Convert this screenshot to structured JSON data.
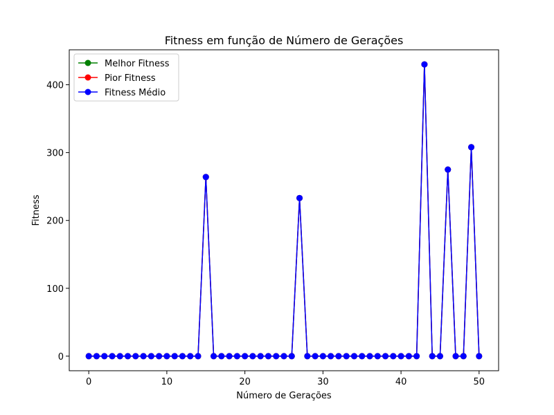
{
  "chart_data": {
    "type": "line",
    "title": "Fitness em função de Número de Gerações",
    "xlabel": "Número de Gerações",
    "ylabel": "Fitness",
    "xlim": [
      -2.5,
      52.5
    ],
    "ylim": [
      -21.5,
      451.5
    ],
    "xticks": [
      0,
      10,
      20,
      30,
      40,
      50
    ],
    "yticks": [
      0,
      100,
      200,
      300,
      400
    ],
    "grid": false,
    "legend_position": "top-left",
    "x": [
      0,
      1,
      2,
      3,
      4,
      5,
      6,
      7,
      8,
      9,
      10,
      11,
      12,
      13,
      14,
      15,
      16,
      17,
      18,
      19,
      20,
      21,
      22,
      23,
      24,
      25,
      26,
      27,
      28,
      29,
      30,
      31,
      32,
      33,
      34,
      35,
      36,
      37,
      38,
      39,
      40,
      41,
      42,
      43,
      44,
      45,
      46,
      47,
      48,
      49,
      50
    ],
    "series": [
      {
        "name": "Melhor Fitness",
        "color": "#008000",
        "values": [
          0,
          0,
          0,
          0,
          0,
          0,
          0,
          0,
          0,
          0,
          0,
          0,
          0,
          0,
          0,
          264,
          0,
          0,
          0,
          0,
          0,
          0,
          0,
          0,
          0,
          0,
          0,
          233,
          0,
          0,
          0,
          0,
          0,
          0,
          0,
          0,
          0,
          0,
          0,
          0,
          0,
          0,
          0,
          430,
          0,
          0,
          275,
          0,
          0,
          308,
          0
        ]
      },
      {
        "name": "Pior Fitness",
        "color": "#ff0000",
        "values": [
          0,
          0,
          0,
          0,
          0,
          0,
          0,
          0,
          0,
          0,
          0,
          0,
          0,
          0,
          0,
          264,
          0,
          0,
          0,
          0,
          0,
          0,
          0,
          0,
          0,
          0,
          0,
          233,
          0,
          0,
          0,
          0,
          0,
          0,
          0,
          0,
          0,
          0,
          0,
          0,
          0,
          0,
          0,
          430,
          0,
          0,
          275,
          0,
          0,
          308,
          0
        ]
      },
      {
        "name": "Fitness Médio",
        "color": "#0000ff",
        "values": [
          0,
          0,
          0,
          0,
          0,
          0,
          0,
          0,
          0,
          0,
          0,
          0,
          0,
          0,
          0,
          264,
          0,
          0,
          0,
          0,
          0,
          0,
          0,
          0,
          0,
          0,
          0,
          233,
          0,
          0,
          0,
          0,
          0,
          0,
          0,
          0,
          0,
          0,
          0,
          0,
          0,
          0,
          0,
          430,
          0,
          0,
          275,
          0,
          0,
          308,
          0
        ]
      }
    ]
  }
}
